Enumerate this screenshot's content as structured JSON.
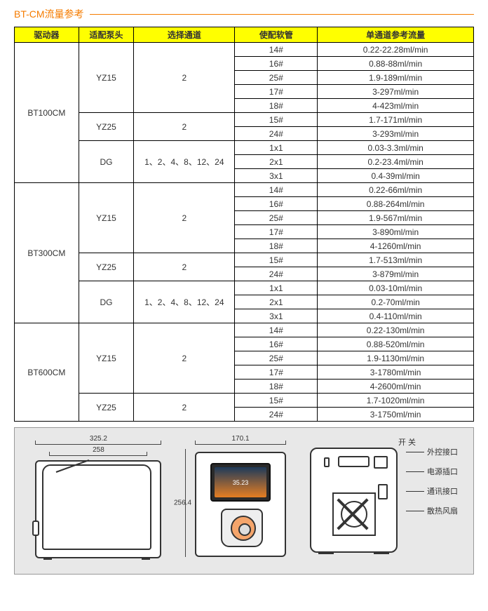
{
  "title": "BT-CM流量参考",
  "headers": [
    "驱动器",
    "适配泵头",
    "选择通道",
    "使配软管",
    "单通道参考流量"
  ],
  "groups": [
    {
      "driver": "BT100CM",
      "pumps": [
        {
          "head": "YZ15",
          "channel": "2",
          "rows": [
            {
              "tube": "14#",
              "flow": "0.22-22.28ml/min"
            },
            {
              "tube": "16#",
              "flow": "0.88-88ml/min"
            },
            {
              "tube": "25#",
              "flow": "1.9-189ml/min"
            },
            {
              "tube": "17#",
              "flow": "3-297ml/min"
            },
            {
              "tube": "18#",
              "flow": "4-423ml/min"
            }
          ]
        },
        {
          "head": "YZ25",
          "channel": "2",
          "rows": [
            {
              "tube": "15#",
              "flow": "1.7-171ml/min"
            },
            {
              "tube": "24#",
              "flow": "3-293ml/min"
            }
          ]
        },
        {
          "head": "DG",
          "channel": "1、2、4、8、12、24",
          "rows": [
            {
              "tube": "1x1",
              "flow": "0.03-3.3ml/min"
            },
            {
              "tube": "2x1",
              "flow": "0.2-23.4ml/min"
            },
            {
              "tube": "3x1",
              "flow": "0.4-39ml/min"
            }
          ]
        }
      ]
    },
    {
      "driver": "BT300CM",
      "pumps": [
        {
          "head": "YZ15",
          "channel": "2",
          "rows": [
            {
              "tube": "14#",
              "flow": "0.22-66ml/min"
            },
            {
              "tube": "16#",
              "flow": "0.88-264ml/min"
            },
            {
              "tube": "25#",
              "flow": "1.9-567ml/min"
            },
            {
              "tube": "17#",
              "flow": "3-890ml/min"
            },
            {
              "tube": "18#",
              "flow": "4-1260ml/min"
            }
          ]
        },
        {
          "head": "YZ25",
          "channel": "2",
          "rows": [
            {
              "tube": "15#",
              "flow": "1.7-513ml/min"
            },
            {
              "tube": "24#",
              "flow": "3-879ml/min"
            }
          ]
        },
        {
          "head": "DG",
          "channel": "1、2、4、8、12、24",
          "rows": [
            {
              "tube": "1x1",
              "flow": "0.03-10ml/min"
            },
            {
              "tube": "2x1",
              "flow": "0.2-70ml/min"
            },
            {
              "tube": "3x1",
              "flow": "0.4-110ml/min"
            }
          ]
        }
      ]
    },
    {
      "driver": "BT600CM",
      "pumps": [
        {
          "head": "YZ15",
          "channel": "2",
          "rows": [
            {
              "tube": "14#",
              "flow": "0.22-130ml/min"
            },
            {
              "tube": "16#",
              "flow": "0.88-520ml/min"
            },
            {
              "tube": "25#",
              "flow": "1.9-1130ml/min"
            },
            {
              "tube": "17#",
              "flow": "3-1780ml/min"
            },
            {
              "tube": "18#",
              "flow": "4-2600ml/min"
            }
          ]
        },
        {
          "head": "YZ25",
          "channel": "2",
          "rows": [
            {
              "tube": "15#",
              "flow": "1.7-1020ml/min"
            },
            {
              "tube": "24#",
              "flow": "3-1750ml/min"
            }
          ]
        }
      ]
    }
  ],
  "diagram": {
    "dims": {
      "side_w1": "325.2",
      "side_w2": "258",
      "front_w": "170.1",
      "front_h": "256.4"
    },
    "labels": {
      "switch": "开  关",
      "ext": "外控接口",
      "power": "电源插口",
      "comm": "通讯接口",
      "fan": "散热风扇"
    },
    "screen_text": "35.23"
  }
}
